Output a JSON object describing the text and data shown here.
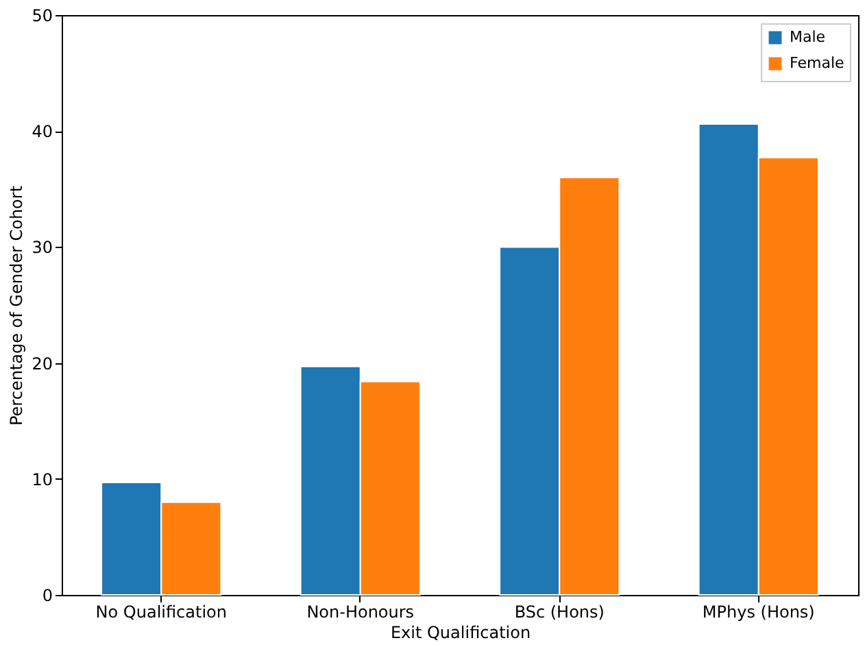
{
  "chart_data": {
    "type": "bar",
    "xlabel": "Exit Qualification",
    "ylabel": "Percentage of Gender Cohort",
    "categories": [
      "No Qualification",
      "Non-Honours",
      "BSc (Hons)",
      "MPhys (Hons)"
    ],
    "series": [
      {
        "name": "Male",
        "color": "#1f77b4",
        "values": [
          9.7,
          19.7,
          30.0,
          40.6
        ]
      },
      {
        "name": "Female",
        "color": "#ff7f0e",
        "values": [
          8.0,
          18.4,
          36.0,
          37.7
        ]
      }
    ],
    "ylim": [
      0,
      50
    ],
    "yticks": [
      0,
      10,
      20,
      30,
      40,
      50
    ],
    "grid": false,
    "legend": "top right"
  }
}
